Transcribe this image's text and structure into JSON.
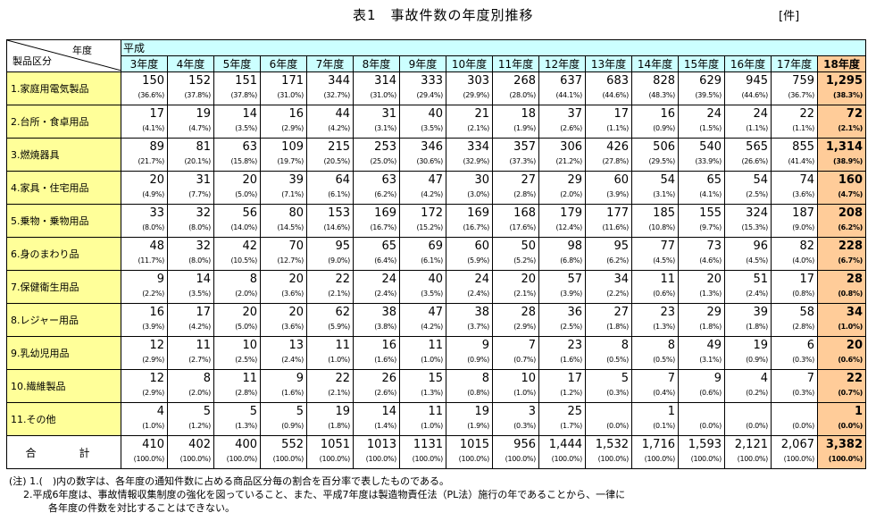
{
  "title": "表1　事故件数の年度別推移",
  "unit": "[件]",
  "header": {
    "era": "平成",
    "year_label": "年度",
    "category_label": "製品区分",
    "years": [
      "3年度",
      "4年度",
      "5年度",
      "6年度",
      "7年度",
      "8年度",
      "9年度",
      "10年度",
      "11年度",
      "12年度",
      "13年度",
      "14年度",
      "15年度",
      "16年度",
      "17年度",
      "18年度"
    ]
  },
  "rows": [
    {
      "category": "1.家庭用電気製品",
      "counts": [
        "150",
        "152",
        "151",
        "171",
        "344",
        "314",
        "333",
        "303",
        "268",
        "637",
        "683",
        "828",
        "629",
        "945",
        "759",
        "1,295"
      ],
      "pcts": [
        "(36.6%)",
        "(37.8%)",
        "(37.8%)",
        "(31.0%)",
        "(32.7%)",
        "(31.0%)",
        "(29.4%)",
        "(29.9%)",
        "(28.0%)",
        "(44.1%)",
        "(44.6%)",
        "(48.3%)",
        "(39.5%)",
        "(44.6%)",
        "(36.7%)",
        "(38.3%)"
      ]
    },
    {
      "category": "2.台所・食卓用品",
      "counts": [
        "17",
        "19",
        "14",
        "16",
        "44",
        "31",
        "40",
        "21",
        "18",
        "37",
        "17",
        "16",
        "24",
        "24",
        "22",
        "72"
      ],
      "pcts": [
        "(4.1%)",
        "(4.7%)",
        "(3.5%)",
        "(2.9%)",
        "(4.2%)",
        "(3.1%)",
        "(3.5%)",
        "(2.1%)",
        "(1.9%)",
        "(2.6%)",
        "(1.1%)",
        "(0.9%)",
        "(1.5%)",
        "(1.1%)",
        "(1.1%)",
        "(2.1%)"
      ]
    },
    {
      "category": "3.燃焼器具",
      "counts": [
        "89",
        "81",
        "63",
        "109",
        "215",
        "253",
        "346",
        "334",
        "357",
        "306",
        "426",
        "506",
        "540",
        "565",
        "855",
        "1,314"
      ],
      "pcts": [
        "(21.7%)",
        "(20.1%)",
        "(15.8%)",
        "(19.7%)",
        "(20.5%)",
        "(25.0%)",
        "(30.6%)",
        "(32.9%)",
        "(37.3%)",
        "(21.2%)",
        "(27.8%)",
        "(29.5%)",
        "(33.9%)",
        "(26.6%)",
        "(41.4%)",
        "(38.9%)"
      ]
    },
    {
      "category": "4.家具・住宅用品",
      "counts": [
        "20",
        "31",
        "20",
        "39",
        "64",
        "63",
        "47",
        "30",
        "27",
        "29",
        "60",
        "54",
        "65",
        "54",
        "74",
        "160"
      ],
      "pcts": [
        "(4.9%)",
        "(7.7%)",
        "(5.0%)",
        "(7.1%)",
        "(6.1%)",
        "(6.2%)",
        "(4.2%)",
        "(3.0%)",
        "(2.8%)",
        "(2.0%)",
        "(3.9%)",
        "(3.1%)",
        "(4.1%)",
        "(2.5%)",
        "(3.6%)",
        "(4.7%)"
      ]
    },
    {
      "category": "5.乗物・乗物用品",
      "counts": [
        "33",
        "32",
        "56",
        "80",
        "153",
        "169",
        "172",
        "169",
        "168",
        "179",
        "177",
        "185",
        "155",
        "324",
        "187",
        "208"
      ],
      "pcts": [
        "(8.0%)",
        "(8.0%)",
        "(14.0%)",
        "(14.5%)",
        "(14.6%)",
        "(16.7%)",
        "(15.2%)",
        "(16.7%)",
        "(17.6%)",
        "(12.4%)",
        "(11.6%)",
        "(10.8%)",
        "(9.7%)",
        "(15.3%)",
        "(9.0%)",
        "(6.2%)"
      ]
    },
    {
      "category": "6.身のまわり品",
      "counts": [
        "48",
        "32",
        "42",
        "70",
        "95",
        "65",
        "69",
        "60",
        "50",
        "98",
        "95",
        "77",
        "73",
        "96",
        "82",
        "228"
      ],
      "pcts": [
        "(11.7%)",
        "(8.0%)",
        "(10.5%)",
        "(12.7%)",
        "(9.0%)",
        "(6.4%)",
        "(6.1%)",
        "(5.9%)",
        "(5.2%)",
        "(6.8%)",
        "(6.2%)",
        "(4.5%)",
        "(4.6%)",
        "(4.5%)",
        "(4.0%)",
        "(6.7%)"
      ]
    },
    {
      "category": "7.保健衛生用品",
      "counts": [
        "9",
        "14",
        "8",
        "20",
        "22",
        "24",
        "40",
        "24",
        "20",
        "57",
        "34",
        "11",
        "20",
        "51",
        "17",
        "28"
      ],
      "pcts": [
        "(2.2%)",
        "(3.5%)",
        "(2.0%)",
        "(3.6%)",
        "(2.1%)",
        "(2.4%)",
        "(3.5%)",
        "(2.4%)",
        "(2.1%)",
        "(3.9%)",
        "(2.2%)",
        "(0.6%)",
        "(1.3%)",
        "(2.4%)",
        "(0.8%)",
        "(0.8%)"
      ]
    },
    {
      "category": "8.レジャー用品",
      "counts": [
        "16",
        "17",
        "20",
        "20",
        "62",
        "38",
        "47",
        "38",
        "28",
        "36",
        "27",
        "23",
        "29",
        "39",
        "58",
        "34"
      ],
      "pcts": [
        "(3.9%)",
        "(4.2%)",
        "(5.0%)",
        "(3.6%)",
        "(5.9%)",
        "(3.8%)",
        "(4.2%)",
        "(3.7%)",
        "(2.9%)",
        "(2.5%)",
        "(1.8%)",
        "(1.3%)",
        "(1.8%)",
        "(1.8%)",
        "(2.8%)",
        "(1.0%)"
      ]
    },
    {
      "category": "9.乳幼児用品",
      "counts": [
        "12",
        "11",
        "10",
        "13",
        "11",
        "16",
        "11",
        "9",
        "7",
        "23",
        "8",
        "8",
        "49",
        "19",
        "6",
        "20"
      ],
      "pcts": [
        "(2.9%)",
        "(2.7%)",
        "(2.5%)",
        "(2.4%)",
        "(1.0%)",
        "(1.6%)",
        "(1.0%)",
        "(0.9%)",
        "(0.7%)",
        "(1.6%)",
        "(0.5%)",
        "(0.5%)",
        "(3.1%)",
        "(0.9%)",
        "(0.3%)",
        "(0.6%)"
      ]
    },
    {
      "category": "10.繊維製品",
      "counts": [
        "12",
        "8",
        "11",
        "9",
        "22",
        "26",
        "15",
        "8",
        "10",
        "17",
        "5",
        "7",
        "9",
        "4",
        "7",
        "22"
      ],
      "pcts": [
        "(2.9%)",
        "(2.0%)",
        "(2.8%)",
        "(1.6%)",
        "(2.1%)",
        "(2.6%)",
        "(1.3%)",
        "(0.8%)",
        "(1.0%)",
        "(1.2%)",
        "(0.3%)",
        "(0.4%)",
        "(0.6%)",
        "(0.2%)",
        "(0.3%)",
        "(0.7%)"
      ]
    },
    {
      "category": "11.その他",
      "counts": [
        "4",
        "5",
        "5",
        "5",
        "19",
        "14",
        "11",
        "19",
        "3",
        "25",
        "",
        "1",
        "",
        "",
        "",
        "1"
      ],
      "pcts": [
        "(1.0%)",
        "(1.2%)",
        "(1.3%)",
        "(0.9%)",
        "(1.8%)",
        "(1.4%)",
        "(1.0%)",
        "(1.9%)",
        "(0.3%)",
        "(1.7%)",
        "(0.0%)",
        "(0.1%)",
        "(0.0%)",
        "(0.0%)",
        "(0.0%)",
        "(0.0%)"
      ]
    }
  ],
  "total": {
    "category": "合　計",
    "counts": [
      "410",
      "402",
      "400",
      "552",
      "1051",
      "1013",
      "1131",
      "1015",
      "956",
      "1,444",
      "1,532",
      "1,716",
      "1,593",
      "2,121",
      "2,067",
      "3,382"
    ],
    "pcts": [
      "(100.0%)",
      "(100.0%)",
      "(100.0%)",
      "(100.0%)",
      "(100.0%)",
      "(100.0%)",
      "(100.0%)",
      "(100.0%)",
      "(100.0%)",
      "(100.0%)",
      "(100.0%)",
      "(100.0%)",
      "(100.0%)",
      "(100.0%)",
      "(100.0%)",
      "(100.0%)"
    ]
  },
  "notes": [
    "(注) 1.(　)内の数字は、各年度の通知件数に占める商品区分毎の割合を百分率で表したものである。",
    "2.平成6年度は、事故情報収集制度の強化を図っていること、また、平成7年度は製造物責任法（PL法）施行の年であることから、一律に",
    "各年度の件数を対比することはできない。"
  ]
}
